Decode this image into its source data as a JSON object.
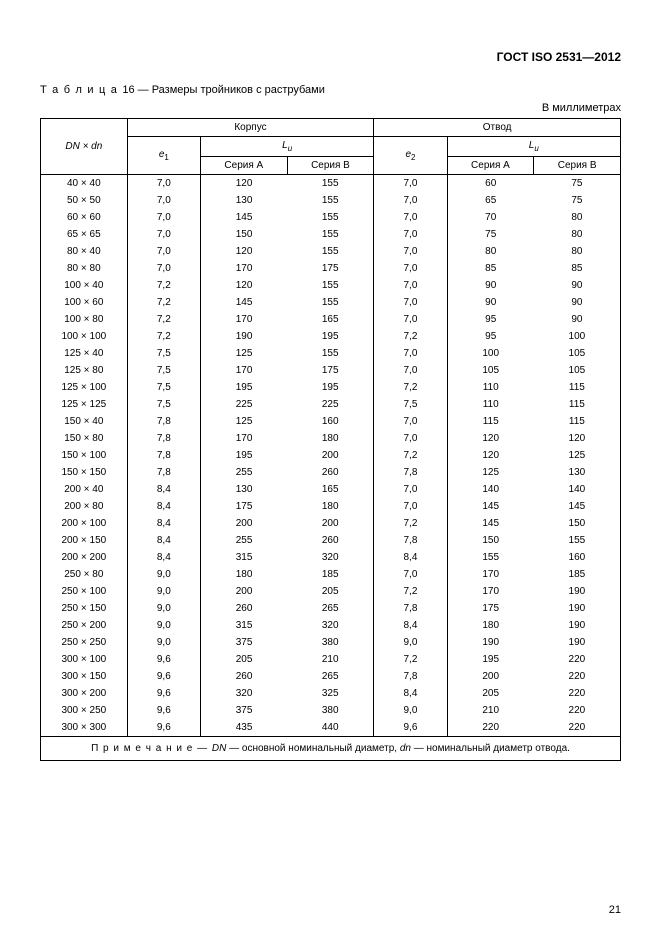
{
  "header": "ГОСТ ISO 2531—2012",
  "table_number": "16",
  "table_title": "Размеры тройников с раструбами",
  "units": "В миллиметрах",
  "page_number": "21",
  "columns": {
    "dn": "DN × dn",
    "body": "Корпус",
    "branch": "Отвод",
    "e1_label": "e",
    "e1_sub": "1",
    "e2_label": "e",
    "e2_sub": "2",
    "Lu_label": "L",
    "Lu_sub": "u",
    "seriesA": "Серия A",
    "seriesB": "Серия B"
  },
  "note_label": "П р и м е ч а н и е — ",
  "note_text1": "DN",
  "note_text2": " — основной номинальный диаметр, ",
  "note_text3": "dn",
  "note_text4": " — номинальный диаметр отвода.",
  "caption_word": "Т а б л и ц а",
  "rows": [
    {
      "dn": "40 × 40",
      "e1": "7,0",
      "a1": "120",
      "b1": "155",
      "e2": "7,0",
      "a2": "60",
      "b2": "75"
    },
    {
      "dn": "50 × 50",
      "e1": "7,0",
      "a1": "130",
      "b1": "155",
      "e2": "7,0",
      "a2": "65",
      "b2": "75"
    },
    {
      "dn": "60 × 60",
      "e1": "7,0",
      "a1": "145",
      "b1": "155",
      "e2": "7,0",
      "a2": "70",
      "b2": "80"
    },
    {
      "dn": "65 × 65",
      "e1": "7,0",
      "a1": "150",
      "b1": "155",
      "e2": "7,0",
      "a2": "75",
      "b2": "80"
    },
    {
      "dn": "80 × 40",
      "e1": "7,0",
      "a1": "120",
      "b1": "155",
      "e2": "7,0",
      "a2": "80",
      "b2": "80"
    },
    {
      "dn": "80 × 80",
      "e1": "7,0",
      "a1": "170",
      "b1": "175",
      "e2": "7,0",
      "a2": "85",
      "b2": "85"
    },
    {
      "dn": "100 × 40",
      "e1": "7,2",
      "a1": "120",
      "b1": "155",
      "e2": "7,0",
      "a2": "90",
      "b2": "90"
    },
    {
      "dn": "100 × 60",
      "e1": "7,2",
      "a1": "145",
      "b1": "155",
      "e2": "7,0",
      "a2": "90",
      "b2": "90"
    },
    {
      "dn": "100 × 80",
      "e1": "7,2",
      "a1": "170",
      "b1": "165",
      "e2": "7,0",
      "a2": "95",
      "b2": "90"
    },
    {
      "dn": "100 × 100",
      "e1": "7,2",
      "a1": "190",
      "b1": "195",
      "e2": "7,2",
      "a2": "95",
      "b2": "100"
    },
    {
      "dn": "125 × 40",
      "e1": "7,5",
      "a1": "125",
      "b1": "155",
      "e2": "7,0",
      "a2": "100",
      "b2": "105"
    },
    {
      "dn": "125 × 80",
      "e1": "7,5",
      "a1": "170",
      "b1": "175",
      "e2": "7,0",
      "a2": "105",
      "b2": "105"
    },
    {
      "dn": "125 × 100",
      "e1": "7,5",
      "a1": "195",
      "b1": "195",
      "e2": "7,2",
      "a2": "110",
      "b2": "115"
    },
    {
      "dn": "125 × 125",
      "e1": "7,5",
      "a1": "225",
      "b1": "225",
      "e2": "7,5",
      "a2": "110",
      "b2": "115"
    },
    {
      "dn": "150 × 40",
      "e1": "7,8",
      "a1": "125",
      "b1": "160",
      "e2": "7,0",
      "a2": "115",
      "b2": "115"
    },
    {
      "dn": "150 × 80",
      "e1": "7,8",
      "a1": "170",
      "b1": "180",
      "e2": "7,0",
      "a2": "120",
      "b2": "120"
    },
    {
      "dn": "150 × 100",
      "e1": "7,8",
      "a1": "195",
      "b1": "200",
      "e2": "7,2",
      "a2": "120",
      "b2": "125"
    },
    {
      "dn": "150 × 150",
      "e1": "7,8",
      "a1": "255",
      "b1": "260",
      "e2": "7,8",
      "a2": "125",
      "b2": "130"
    },
    {
      "dn": "200 × 40",
      "e1": "8,4",
      "a1": "130",
      "b1": "165",
      "e2": "7,0",
      "a2": "140",
      "b2": "140"
    },
    {
      "dn": "200 × 80",
      "e1": "8,4",
      "a1": "175",
      "b1": "180",
      "e2": "7,0",
      "a2": "145",
      "b2": "145"
    },
    {
      "dn": "200 × 100",
      "e1": "8,4",
      "a1": "200",
      "b1": "200",
      "e2": "7,2",
      "a2": "145",
      "b2": "150"
    },
    {
      "dn": "200 × 150",
      "e1": "8,4",
      "a1": "255",
      "b1": "260",
      "e2": "7,8",
      "a2": "150",
      "b2": "155"
    },
    {
      "dn": "200 × 200",
      "e1": "8,4",
      "a1": "315",
      "b1": "320",
      "e2": "8,4",
      "a2": "155",
      "b2": "160"
    },
    {
      "dn": "250 × 80",
      "e1": "9,0",
      "a1": "180",
      "b1": "185",
      "e2": "7,0",
      "a2": "170",
      "b2": "185"
    },
    {
      "dn": "250 × 100",
      "e1": "9,0",
      "a1": "200",
      "b1": "205",
      "e2": "7,2",
      "a2": "170",
      "b2": "190"
    },
    {
      "dn": "250 × 150",
      "e1": "9,0",
      "a1": "260",
      "b1": "265",
      "e2": "7,8",
      "a2": "175",
      "b2": "190"
    },
    {
      "dn": "250 × 200",
      "e1": "9,0",
      "a1": "315",
      "b1": "320",
      "e2": "8,4",
      "a2": "180",
      "b2": "190"
    },
    {
      "dn": "250 × 250",
      "e1": "9,0",
      "a1": "375",
      "b1": "380",
      "e2": "9,0",
      "a2": "190",
      "b2": "190"
    },
    {
      "dn": "300 × 100",
      "e1": "9,6",
      "a1": "205",
      "b1": "210",
      "e2": "7,2",
      "a2": "195",
      "b2": "220"
    },
    {
      "dn": "300 × 150",
      "e1": "9,6",
      "a1": "260",
      "b1": "265",
      "e2": "7,8",
      "a2": "200",
      "b2": "220"
    },
    {
      "dn": "300 × 200",
      "e1": "9,6",
      "a1": "320",
      "b1": "325",
      "e2": "8,4",
      "a2": "205",
      "b2": "220"
    },
    {
      "dn": "300 × 250",
      "e1": "9,6",
      "a1": "375",
      "b1": "380",
      "e2": "9,0",
      "a2": "210",
      "b2": "220"
    },
    {
      "dn": "300 × 300",
      "e1": "9,6",
      "a1": "435",
      "b1": "440",
      "e2": "9,6",
      "a2": "220",
      "b2": "220"
    }
  ]
}
